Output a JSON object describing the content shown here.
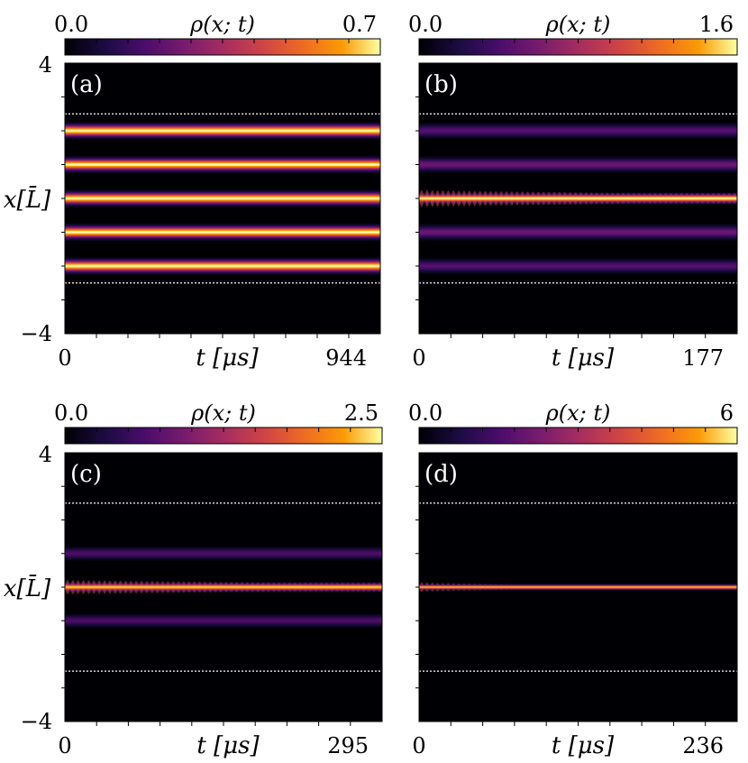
{
  "chart_data": [
    {
      "type": "heatmap",
      "panel_label": "(a)",
      "colorbar": {
        "label": "ρ(x; t)",
        "min": 0.0,
        "max": 0.7,
        "min_label": "0.0",
        "max_label": "0.7"
      },
      "xlabel": "t [μs]",
      "x_tick_labels": [
        "0",
        "944"
      ],
      "xlim": [
        0,
        944
      ],
      "ylabel": "x[L̄]",
      "y_tick_labels": [
        "4",
        "−4"
      ],
      "ylim": [
        -4,
        4
      ],
      "trap_lines_x": [
        -2.5,
        2.5
      ],
      "bands": [
        {
          "x": 2.0,
          "peak": 0.7,
          "width": 0.1
        },
        {
          "x": 1.0,
          "peak": 0.7,
          "width": 0.1
        },
        {
          "x": 0.0,
          "peak": 0.7,
          "width": 0.1
        },
        {
          "x": -1.0,
          "peak": 0.7,
          "width": 0.1
        },
        {
          "x": -2.0,
          "peak": 0.7,
          "width": 0.1
        }
      ]
    },
    {
      "type": "heatmap",
      "panel_label": "(b)",
      "colorbar": {
        "label": "ρ(x; t)",
        "min": 0.0,
        "max": 1.6,
        "min_label": "0.0",
        "max_label": "1.6"
      },
      "xlabel": "t [μs]",
      "x_tick_labels": [
        "0",
        "177"
      ],
      "xlim": [
        0,
        177
      ],
      "ylabel": "",
      "y_tick_labels": [],
      "ylim": [
        -4,
        4
      ],
      "trap_lines_x": [
        -2.5,
        2.5
      ],
      "bands": [
        {
          "x": 2.0,
          "peak": 0.45,
          "width": 0.11
        },
        {
          "x": 1.0,
          "peak": 0.55,
          "width": 0.11
        },
        {
          "x": 0.0,
          "peak": 1.6,
          "width": 0.07,
          "oscillating": true
        },
        {
          "x": -1.0,
          "peak": 0.55,
          "width": 0.11
        },
        {
          "x": -2.0,
          "peak": 0.45,
          "width": 0.11
        }
      ]
    },
    {
      "type": "heatmap",
      "panel_label": "(c)",
      "colorbar": {
        "label": "ρ(x; t)",
        "min": 0.0,
        "max": 2.5,
        "min_label": "0.0",
        "max_label": "2.5"
      },
      "xlabel": "t [μs]",
      "x_tick_labels": [
        "0",
        "295"
      ],
      "xlim": [
        0,
        295
      ],
      "ylabel": "x[L̄]",
      "y_tick_labels": [
        "4",
        "−4"
      ],
      "ylim": [
        -4,
        4
      ],
      "trap_lines_x": [
        -2.5,
        2.5
      ],
      "bands": [
        {
          "x": 1.0,
          "peak": 0.7,
          "width": 0.1
        },
        {
          "x": 0.0,
          "peak": 2.4,
          "width": 0.06,
          "oscillating": true
        },
        {
          "x": -1.0,
          "peak": 0.7,
          "width": 0.1
        }
      ]
    },
    {
      "type": "heatmap",
      "panel_label": "(d)",
      "colorbar": {
        "label": "ρ(x; t)",
        "min": 0.0,
        "max": 6.5,
        "min_label": "0.0",
        "max_label": "6"
      },
      "xlabel": "t [μs]",
      "x_tick_labels": [
        "0",
        "236"
      ],
      "xlim": [
        0,
        236
      ],
      "ylabel": "",
      "y_tick_labels": [],
      "ylim": [
        -4,
        4
      ],
      "trap_lines_x": [
        -2.5,
        2.5
      ],
      "bands": [
        {
          "x": 0.0,
          "peak": 6.0,
          "width": 0.04,
          "oscillating": true,
          "spread_start": true
        }
      ]
    }
  ]
}
